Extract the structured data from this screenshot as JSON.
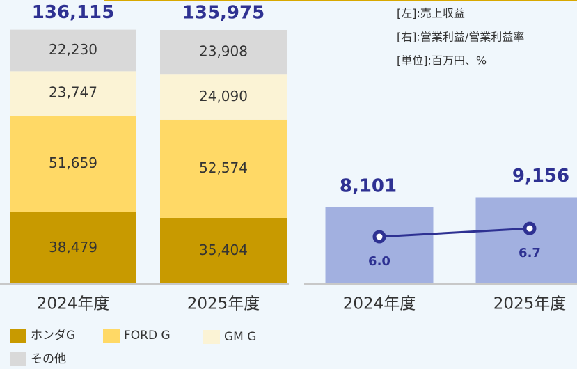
{
  "notes": [
    "[左]:売上収益",
    "[右]:営業利益/営業利益率",
    "[単位]:百万円、%"
  ],
  "chart_data": [
    {
      "type": "stacked_bar",
      "categories": [
        "2024年度",
        "2025年度"
      ],
      "ylim": [
        0,
        152000
      ],
      "series": [
        {
          "name": "ホンダG",
          "color": "#c89a00",
          "values": [
            38479,
            35404
          ],
          "value_labels": [
            "38,479",
            "35,404"
          ]
        },
        {
          "name": "FORD G",
          "color": "#ffd966",
          "values": [
            51659,
            52574
          ],
          "value_labels": [
            "51,659",
            "52,574"
          ]
        },
        {
          "name": "GM G",
          "color": "#fbf3d5",
          "values": [
            23747,
            24090
          ],
          "value_labels": [
            "23,747",
            "24,090"
          ]
        },
        {
          "name": "その他",
          "color": "#d9d9d9",
          "values": [
            22230,
            23908
          ],
          "value_labels": [
            "22,230",
            "23,908"
          ]
        }
      ],
      "totals": [
        136115,
        135975
      ],
      "total_labels": [
        "136,115",
        "135,975"
      ]
    },
    {
      "type": "bar_line",
      "categories": [
        "2024年度",
        "2025年度"
      ],
      "ylim": [
        0,
        30000
      ],
      "y2lim": [
        2,
        26
      ],
      "series": [
        {
          "color": "#a2b0e0",
          "values": [
            8101,
            9156
          ],
          "value_labels": [
            "8,101",
            "9,156"
          ]
        },
        {
          "color": "#2e3192",
          "axis": "y2",
          "values": [
            6.0,
            6.7
          ],
          "value_labels": [
            "6.0",
            "6.7"
          ]
        }
      ]
    }
  ]
}
